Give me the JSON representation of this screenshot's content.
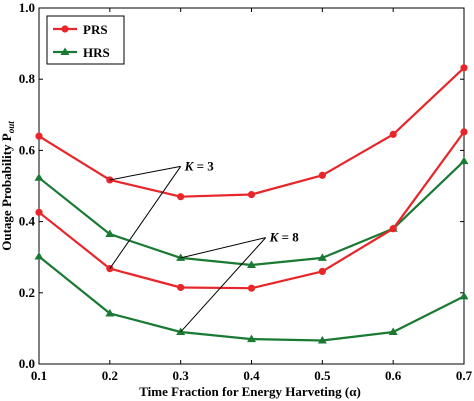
{
  "chart_data": {
    "type": "line",
    "xlabel": "Time Fraction for Energy Harveting (α)",
    "ylabel": "Outage Probability P",
    "ylabel_sub": "out",
    "xlim": [
      0.1,
      0.7
    ],
    "ylim": [
      0.0,
      1.0
    ],
    "xticks": [
      "0.1",
      "0.2",
      "0.3",
      "0.4",
      "0.5",
      "0.6",
      "0.7"
    ],
    "yticks": [
      "0.0",
      "0.2",
      "0.4",
      "0.6",
      "0.8",
      "1.0"
    ],
    "grid": false,
    "legend_position": "top-left",
    "legend": [
      {
        "label": "PRS",
        "color": "#e8262a",
        "marker": "circle"
      },
      {
        "label": "HRS",
        "color": "#1a7a33",
        "marker": "triangle"
      }
    ],
    "x": [
      0.1,
      0.2,
      0.3,
      0.4,
      0.5,
      0.6,
      0.7
    ],
    "series": [
      {
        "group": "PRS",
        "K": "3",
        "color": "#e8262a",
        "marker": "circle",
        "values": [
          0.64,
          0.517,
          0.47,
          0.476,
          0.53,
          0.645,
          0.832
        ]
      },
      {
        "group": "HRS",
        "K": "3",
        "color": "#1a7a33",
        "marker": "triangle",
        "values": [
          0.523,
          0.365,
          0.298,
          0.278,
          0.298,
          0.38,
          0.57
        ]
      },
      {
        "group": "PRS",
        "K": "8",
        "color": "#e8262a",
        "marker": "circle",
        "values": [
          0.426,
          0.268,
          0.215,
          0.213,
          0.26,
          0.38,
          0.652
        ]
      },
      {
        "group": "HRS",
        "K": "8",
        "color": "#1a7a33",
        "marker": "triangle",
        "values": [
          0.302,
          0.142,
          0.09,
          0.07,
          0.066,
          0.09,
          0.19
        ]
      }
    ],
    "annotations": [
      {
        "k_label": "K",
        "value": " = 3",
        "text_at": [
          0.3,
          0.555
        ],
        "targets": [
          [
            0.2,
            0.517
          ],
          [
            0.2,
            0.268
          ]
        ]
      },
      {
        "k_label": "K",
        "value": " = 8",
        "text_at": [
          0.42,
          0.355
        ],
        "targets": [
          [
            0.3,
            0.298
          ],
          [
            0.3,
            0.09
          ]
        ]
      }
    ]
  }
}
